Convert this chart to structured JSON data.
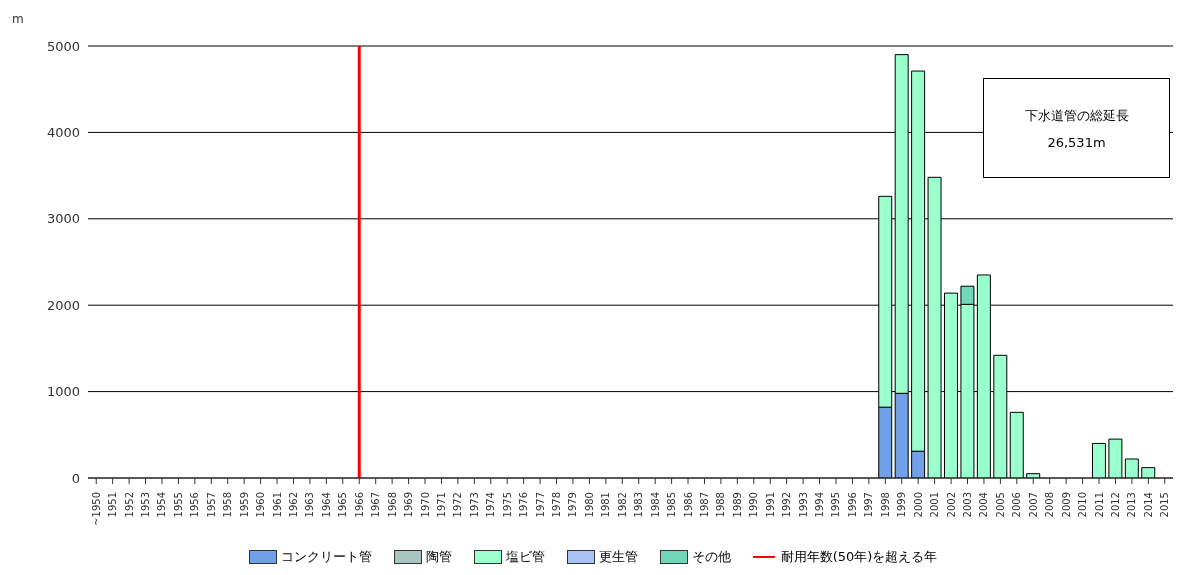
{
  "chart_data": {
    "type": "bar",
    "stacked": true,
    "ylabel": "m",
    "categories": [
      "~1950",
      "1951",
      "1952",
      "1953",
      "1954",
      "1955",
      "1956",
      "1957",
      "1958",
      "1959",
      "1960",
      "1961",
      "1962",
      "1963",
      "1964",
      "1965",
      "1966",
      "1967",
      "1968",
      "1969",
      "1970",
      "1971",
      "1972",
      "1973",
      "1974",
      "1975",
      "1976",
      "1977",
      "1978",
      "1979",
      "1980",
      "1981",
      "1982",
      "1983",
      "1984",
      "1985",
      "1986",
      "1987",
      "1988",
      "1989",
      "1990",
      "1991",
      "1992",
      "1993",
      "1994",
      "1995",
      "1996",
      "1997",
      "1998",
      "1999",
      "2000",
      "2001",
      "2002",
      "2003",
      "2004",
      "2005",
      "2006",
      "2007",
      "2008",
      "2009",
      "2010",
      "2011",
      "2012",
      "2013",
      "2014",
      "2015"
    ],
    "series": [
      {
        "name": "コンクリート管",
        "color": "#6fa0e8",
        "values": [
          0,
          0,
          0,
          0,
          0,
          0,
          0,
          0,
          0,
          0,
          0,
          0,
          0,
          0,
          0,
          0,
          0,
          0,
          0,
          0,
          0,
          0,
          0,
          0,
          0,
          0,
          0,
          0,
          0,
          0,
          0,
          0,
          0,
          0,
          0,
          0,
          0,
          0,
          0,
          0,
          0,
          0,
          0,
          0,
          0,
          0,
          0,
          0,
          820,
          980,
          310,
          0,
          0,
          0,
          0,
          0,
          0,
          0,
          0,
          0,
          0,
          0,
          0,
          0,
          0,
          0
        ]
      },
      {
        "name": "陶管",
        "color": "#a9c4be",
        "values": [
          0,
          0,
          0,
          0,
          0,
          0,
          0,
          0,
          0,
          0,
          0,
          0,
          0,
          0,
          0,
          0,
          0,
          0,
          0,
          0,
          0,
          0,
          0,
          0,
          0,
          0,
          0,
          0,
          0,
          0,
          0,
          0,
          0,
          0,
          0,
          0,
          0,
          0,
          0,
          0,
          0,
          0,
          0,
          0,
          0,
          0,
          0,
          0,
          0,
          0,
          0,
          0,
          0,
          0,
          0,
          0,
          0,
          0,
          0,
          0,
          0,
          0,
          0,
          0,
          0,
          0
        ]
      },
      {
        "name": "塩ビ管",
        "color": "#99ffcc",
        "values": [
          0,
          0,
          0,
          0,
          0,
          0,
          0,
          0,
          0,
          0,
          0,
          0,
          0,
          0,
          0,
          0,
          0,
          0,
          0,
          0,
          0,
          0,
          0,
          0,
          0,
          0,
          0,
          0,
          0,
          0,
          0,
          0,
          0,
          0,
          0,
          0,
          0,
          0,
          0,
          0,
          0,
          0,
          0,
          0,
          0,
          0,
          0,
          0,
          2440,
          3920,
          4400,
          3480,
          2140,
          2010,
          2350,
          1420,
          760,
          50,
          0,
          0,
          0,
          400,
          450,
          220,
          120,
          0
        ]
      },
      {
        "name": "更生管",
        "color": "#a9c2f5",
        "values": [
          0,
          0,
          0,
          0,
          0,
          0,
          0,
          0,
          0,
          0,
          0,
          0,
          0,
          0,
          0,
          0,
          0,
          0,
          0,
          0,
          0,
          0,
          0,
          0,
          0,
          0,
          0,
          0,
          0,
          0,
          0,
          0,
          0,
          0,
          0,
          0,
          0,
          0,
          0,
          0,
          0,
          0,
          0,
          0,
          0,
          0,
          0,
          0,
          0,
          0,
          0,
          0,
          0,
          0,
          0,
          0,
          0,
          0,
          0,
          0,
          0,
          0,
          0,
          0,
          0,
          0
        ]
      },
      {
        "name": "その他",
        "color": "#70d8b8",
        "values": [
          0,
          0,
          0,
          0,
          0,
          0,
          0,
          0,
          0,
          0,
          0,
          0,
          0,
          0,
          0,
          0,
          0,
          0,
          0,
          0,
          0,
          0,
          0,
          0,
          0,
          0,
          0,
          0,
          0,
          0,
          0,
          0,
          0,
          0,
          0,
          0,
          0,
          0,
          0,
          0,
          0,
          0,
          0,
          0,
          0,
          0,
          0,
          0,
          0,
          0,
          0,
          0,
          0,
          210,
          0,
          0,
          0,
          0,
          0,
          0,
          0,
          0,
          0,
          0,
          0,
          0
        ]
      }
    ],
    "ref_lines": [
      {
        "axis": "x",
        "value": "1966",
        "label": "耐用年数(50年)を超える年",
        "color": "#ff0000"
      }
    ],
    "annotations": [
      "下水道管の総延長",
      "26,531m"
    ],
    "ylim": [
      0,
      5000
    ],
    "yticks": [
      0,
      1000,
      2000,
      3000,
      4000,
      5000
    ],
    "grid": "y",
    "legend": "bottom"
  }
}
